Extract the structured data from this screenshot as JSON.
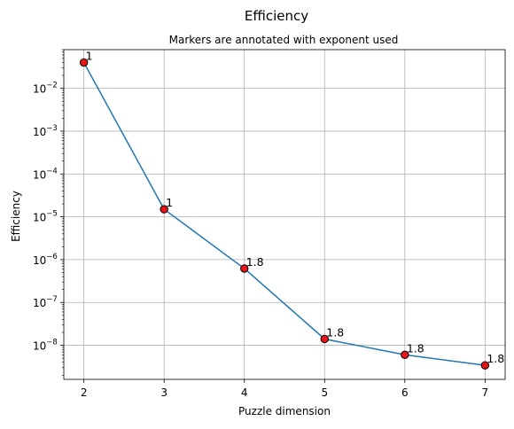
{
  "chart_data": {
    "type": "line",
    "title": "Efficiency",
    "subtitle": "Markers are annotated with exponent used",
    "xlabel": "Puzzle dimension",
    "ylabel": "Efficiency",
    "x": [
      2,
      3,
      4,
      5,
      6,
      7
    ],
    "y": [
      0.04,
      1.5e-05,
      6.2e-07,
      1.4e-08,
      6e-09,
      3.4e-09
    ],
    "annotations": [
      "1",
      "1",
      "1.8",
      "1.8",
      "1.8",
      "1.8"
    ],
    "x_ticks": [
      "2",
      "3",
      "4",
      "5",
      "6",
      "7"
    ],
    "y_ticks": [
      {
        "exp": -8,
        "label_base": "10",
        "label_exp": "−8"
      },
      {
        "exp": -7,
        "label_base": "10",
        "label_exp": "−7"
      },
      {
        "exp": -6,
        "label_base": "10",
        "label_exp": "−6"
      },
      {
        "exp": -5,
        "label_base": "10",
        "label_exp": "−5"
      },
      {
        "exp": -4,
        "label_base": "10",
        "label_exp": "−4"
      },
      {
        "exp": -3,
        "label_base": "10",
        "label_exp": "−3"
      },
      {
        "exp": -2,
        "label_base": "10",
        "label_exp": "−2"
      }
    ],
    "xlim": [
      1.75,
      7.25
    ],
    "ylim": [
      1.6e-09,
      0.08
    ],
    "y_scale": "log",
    "grid": true,
    "colors": {
      "line": "#1f77b4",
      "marker_fill": "#e8141a",
      "marker_edge": "#000000",
      "grid": "#b0b0b0",
      "axes": "#000000"
    }
  }
}
